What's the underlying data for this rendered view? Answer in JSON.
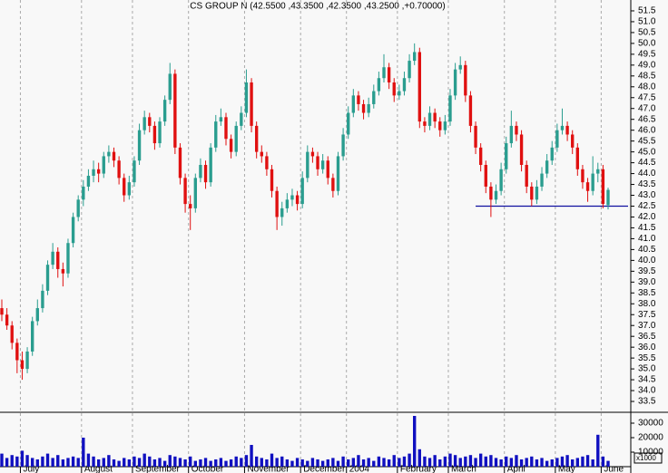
{
  "chart_data": {
    "type": "candlestick",
    "title": "CS GROUP N (42.5500 ,43.3500 ,42.3500 ,43.2500 ,+0.70000)",
    "categories": [
      null,
      null,
      null,
      null,
      "July",
      null,
      null,
      null,
      null,
      null,
      null,
      null,
      null,
      null,
      null,
      null,
      "August",
      null,
      null,
      null,
      null,
      null,
      null,
      null,
      null,
      null,
      "September",
      null,
      null,
      null,
      null,
      null,
      null,
      null,
      null,
      null,
      null,
      "October",
      null,
      null,
      null,
      null,
      null,
      null,
      null,
      null,
      null,
      null,
      "November",
      null,
      null,
      null,
      null,
      null,
      null,
      null,
      null,
      null,
      null,
      "December",
      null,
      null,
      null,
      null,
      null,
      null,
      null,
      null,
      "2004",
      null,
      null,
      null,
      null,
      null,
      null,
      null,
      null,
      null,
      "February",
      null,
      null,
      null,
      null,
      null,
      null,
      null,
      null,
      null,
      "March",
      null,
      null,
      null,
      null,
      null,
      null,
      null,
      null,
      null,
      null,
      "April",
      null,
      null,
      null,
      null,
      null,
      null,
      null,
      null,
      null,
      "May",
      null,
      null,
      null,
      null,
      null,
      null,
      null,
      null,
      "June",
      null
    ],
    "open": [
      37.8,
      37.5,
      37.0,
      36.2,
      35.4,
      35.0,
      35.8,
      37.2,
      37.8,
      38.6,
      39.8,
      40.4,
      39.6,
      39.4,
      40.8,
      42.0,
      42.8,
      43.4,
      43.9,
      44.2,
      44.0,
      44.8,
      45.0,
      44.6,
      43.8,
      43.0,
      43.6,
      44.6,
      46.0,
      46.6,
      46.2,
      45.4,
      46.4,
      47.4,
      48.6,
      45.2,
      43.8,
      42.6,
      42.4,
      43.8,
      44.4,
      43.6,
      45.2,
      46.4,
      46.6,
      45.6,
      45.0,
      46.2,
      46.8,
      48.2,
      46.2,
      45.0,
      44.8,
      44.2,
      43.2,
      42.0,
      42.4,
      42.8,
      43.0,
      42.6,
      43.8,
      45.0,
      44.8,
      44.2,
      44.6,
      43.8,
      43.2,
      44.8,
      45.8,
      46.8,
      47.6,
      47.2,
      46.8,
      47.2,
      47.8,
      48.4,
      48.9,
      48.2,
      47.6,
      47.8,
      48.4,
      49.2,
      49.6,
      46.4,
      46.2,
      46.8,
      46.4,
      46.0,
      46.4,
      47.6,
      48.8,
      49.0,
      47.6,
      46.2,
      45.2,
      44.4,
      43.4,
      42.8,
      43.2,
      44.2,
      45.4,
      46.2,
      45.8,
      44.4,
      43.4,
      42.8,
      43.4,
      44.0,
      44.6,
      45.2,
      46.0,
      46.2,
      45.8,
      45.2,
      44.2,
      43.6,
      43.2,
      44.0,
      44.2,
      42.55
    ],
    "high": [
      38.2,
      37.8,
      37.2,
      36.4,
      35.8,
      36.0,
      37.4,
      38.2,
      38.9,
      40.0,
      40.8,
      40.6,
      39.9,
      41.0,
      42.2,
      43.0,
      43.7,
      44.2,
      44.6,
      44.5,
      45.0,
      45.3,
      45.2,
      44.8,
      44.0,
      43.9,
      44.8,
      46.3,
      46.9,
      46.8,
      46.4,
      46.6,
      47.6,
      49.1,
      48.8,
      45.4,
      44.0,
      43.0,
      44.0,
      44.7,
      44.6,
      45.4,
      46.7,
      47.0,
      46.8,
      45.8,
      46.4,
      47.1,
      48.8,
      48.4,
      46.4,
      45.3,
      45.0,
      44.4,
      43.4,
      42.7,
      43.1,
      43.3,
      43.2,
      44.1,
      45.3,
      45.2,
      45.0,
      44.9,
      44.8,
      44.0,
      45.0,
      46.1,
      47.1,
      47.9,
      47.8,
      47.4,
      47.5,
      48.1,
      48.7,
      49.5,
      49.1,
      48.4,
      48.1,
      48.7,
      49.5,
      50.0,
      49.8,
      46.6,
      47.1,
      47.0,
      46.6,
      46.7,
      47.9,
      49.1,
      49.4,
      49.2,
      47.8,
      46.4,
      45.4,
      44.6,
      43.6,
      43.5,
      44.5,
      45.7,
      46.9,
      46.4,
      46.0,
      44.6,
      43.6,
      43.7,
      44.3,
      44.9,
      45.5,
      46.3,
      47.0,
      46.4,
      46.0,
      45.4,
      44.4,
      43.8,
      44.8,
      44.5,
      44.4,
      43.35
    ],
    "low": [
      37.2,
      36.8,
      35.9,
      34.8,
      34.5,
      34.8,
      35.6,
      37.0,
      37.6,
      38.4,
      39.6,
      39.2,
      38.8,
      39.2,
      40.6,
      41.8,
      42.5,
      43.2,
      43.6,
      43.6,
      43.8,
      44.5,
      44.3,
      43.5,
      42.7,
      42.8,
      43.4,
      44.4,
      45.8,
      45.9,
      45.1,
      45.2,
      46.2,
      47.2,
      44.9,
      43.5,
      42.2,
      41.4,
      42.2,
      43.6,
      43.3,
      43.4,
      45.0,
      46.2,
      45.3,
      44.7,
      44.8,
      46.0,
      46.6,
      45.9,
      44.7,
      44.5,
      43.9,
      42.9,
      41.4,
      41.6,
      42.2,
      42.5,
      42.3,
      42.4,
      43.6,
      44.5,
      43.9,
      44.0,
      43.5,
      42.9,
      43.0,
      44.6,
      45.6,
      46.6,
      46.9,
      46.5,
      46.6,
      47.0,
      47.6,
      48.2,
      47.9,
      47.3,
      47.4,
      47.6,
      48.2,
      49.0,
      46.1,
      45.9,
      46.0,
      46.1,
      45.7,
      45.8,
      46.2,
      47.4,
      48.6,
      47.3,
      45.9,
      44.9,
      44.1,
      43.1,
      42.0,
      42.6,
      43.0,
      44.0,
      45.2,
      45.5,
      44.1,
      43.1,
      42.5,
      42.6,
      43.2,
      43.8,
      44.4,
      45.0,
      45.8,
      45.5,
      44.9,
      43.9,
      43.3,
      42.7,
      43.0,
      43.6,
      42.4,
      42.35
    ],
    "close": [
      37.5,
      37.0,
      36.2,
      35.4,
      35.0,
      35.8,
      37.2,
      37.8,
      38.6,
      39.8,
      40.4,
      39.6,
      39.4,
      40.8,
      42.0,
      42.8,
      43.4,
      43.9,
      44.2,
      44.0,
      44.8,
      45.0,
      44.6,
      43.8,
      43.0,
      43.6,
      44.6,
      46.0,
      46.6,
      46.2,
      45.4,
      46.4,
      47.4,
      48.6,
      45.2,
      43.8,
      42.6,
      42.4,
      43.8,
      44.4,
      43.6,
      45.2,
      46.4,
      46.6,
      45.6,
      45.0,
      46.2,
      46.8,
      48.2,
      46.2,
      45.0,
      44.8,
      44.2,
      43.2,
      42.0,
      42.4,
      42.8,
      43.0,
      42.6,
      43.8,
      45.0,
      44.8,
      44.2,
      44.6,
      43.8,
      43.2,
      44.8,
      45.8,
      46.8,
      47.6,
      47.2,
      46.8,
      47.2,
      47.8,
      48.4,
      48.9,
      48.2,
      47.6,
      47.8,
      48.4,
      49.2,
      49.6,
      46.4,
      46.2,
      46.8,
      46.4,
      46.0,
      46.4,
      47.6,
      48.8,
      49.0,
      47.6,
      46.2,
      45.2,
      44.4,
      43.4,
      42.8,
      43.2,
      44.2,
      45.4,
      46.2,
      45.8,
      44.4,
      43.4,
      42.8,
      43.4,
      44.0,
      44.6,
      45.2,
      46.0,
      46.2,
      45.8,
      45.2,
      44.2,
      43.6,
      43.2,
      44.0,
      44.2,
      42.6,
      43.25
    ],
    "volume": [
      9000,
      6000,
      8000,
      7000,
      11000,
      8000,
      6000,
      5000,
      7000,
      9000,
      6000,
      8000,
      5000,
      6000,
      7000,
      6000,
      20000,
      9000,
      7000,
      5000,
      6000,
      8000,
      5000,
      4000,
      6000,
      5000,
      7000,
      6000,
      9000,
      7000,
      5000,
      6000,
      4000,
      8000,
      7000,
      6000,
      5000,
      7000,
      4000,
      5000,
      6000,
      4000,
      5000,
      6000,
      4000,
      5000,
      7000,
      6000,
      8000,
      15000,
      7000,
      6000,
      5000,
      9000,
      6000,
      7000,
      5000,
      4000,
      6000,
      5000,
      4000,
      6000,
      5000,
      4000,
      5000,
      6000,
      4000,
      7000,
      5000,
      6000,
      8000,
      5000,
      6000,
      4000,
      7000,
      6000,
      5000,
      8000,
      6000,
      7000,
      9000,
      35000,
      12000,
      7000,
      6000,
      8000,
      5000,
      7000,
      9000,
      8000,
      6000,
      7000,
      8000,
      6000,
      9000,
      7000,
      8000,
      6000,
      5000,
      7000,
      6000,
      8000,
      5000,
      6000,
      7000,
      5000,
      6000,
      4000,
      5000,
      6000,
      7000,
      8000,
      5000,
      6000,
      7000,
      8000,
      5000,
      22000,
      7000,
      4000
    ],
    "up_color": "#2a9d8f",
    "down_color": "#e01010",
    "ylim": [
      33.0,
      52.0
    ],
    "yticks": [
      {
        "value": 33.5,
        "label": "33.5"
      },
      {
        "value": 34,
        "label": "34.0"
      },
      34.5,
      {
        "value": 35,
        "label": "35.0"
      },
      35.5,
      {
        "value": 36,
        "label": "36.0"
      },
      36.5,
      {
        "value": 37,
        "label": "37.0"
      },
      37.5,
      {
        "value": 38,
        "label": "38.0"
      },
      38.5,
      {
        "value": 39,
        "label": "39.0"
      },
      39.5,
      {
        "value": 40,
        "label": "40.0"
      },
      40.5,
      {
        "value": 41,
        "label": "41.0"
      },
      41.5,
      {
        "value": 42,
        "label": "42.0"
      },
      42.5,
      {
        "value": 43,
        "label": "43.0"
      },
      43.5,
      {
        "value": 44,
        "label": "44.0"
      },
      44.5,
      {
        "value": 45,
        "label": "45.0"
      },
      45.5,
      {
        "value": 46,
        "label": "46.0"
      },
      46.5,
      {
        "value": 47,
        "label": "47.0"
      },
      47.5,
      {
        "value": 48,
        "label": "48.0"
      },
      48.5,
      {
        "value": 49,
        "label": "49.0"
      },
      49.5,
      {
        "value": 50,
        "label": "50.0"
      },
      50.5,
      {
        "value": 51,
        "label": "51.0"
      },
      51.5
    ],
    "volume_color": "#1010c0",
    "volume_ylim": [
      0,
      37500
    ],
    "volume_yticks": [
      10000,
      20000,
      30000
    ],
    "volume_unit_label": "x1000",
    "support_line": {
      "y": 42.5,
      "from_category": 93,
      "color": "#1010a0"
    }
  }
}
